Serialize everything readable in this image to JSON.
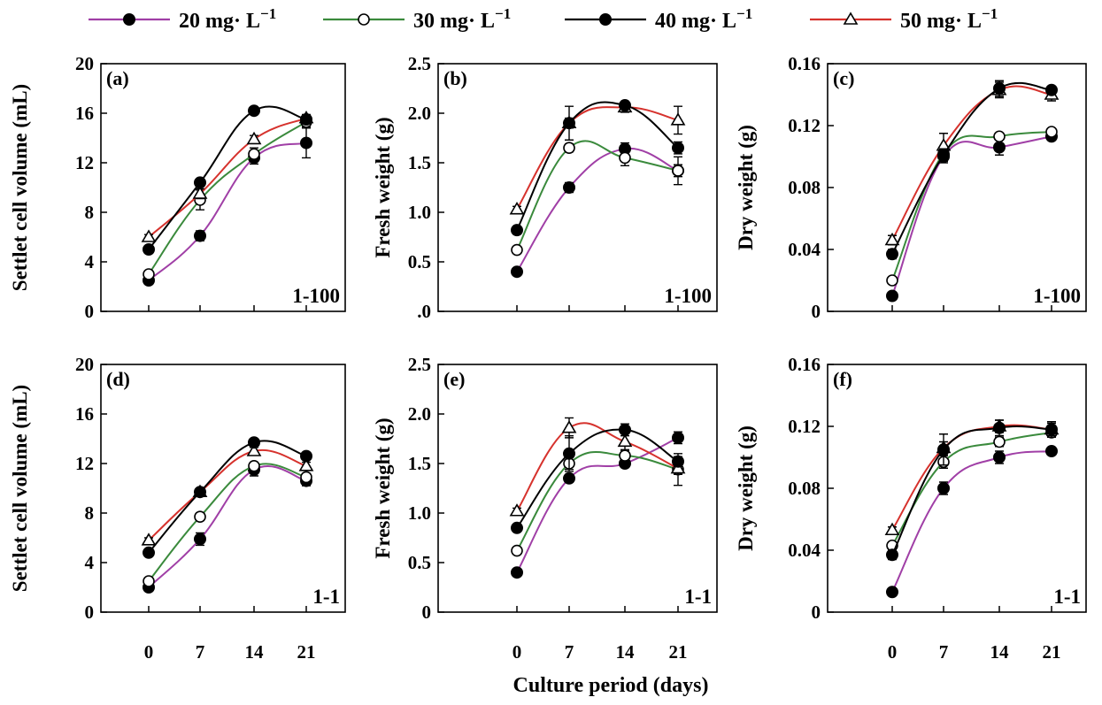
{
  "colors": {
    "s20": "#a03fa6",
    "s30": "#3a8a3c",
    "s40": "#000000",
    "s50": "#d6322d"
  },
  "legend": [
    {
      "label": "20 mg· L",
      "sup": "−1",
      "marker": "filled-circle",
      "color": "#a03fa6"
    },
    {
      "label": "30 mg· L",
      "sup": "−1",
      "marker": "open-circle",
      "color": "#3a8a3c"
    },
    {
      "label": "40 mg· L",
      "sup": "−1",
      "marker": "filled-circle",
      "color": "#000000"
    },
    {
      "label": "50 mg· L",
      "sup": "−1",
      "marker": "open-triangle",
      "color": "#d6322d"
    }
  ],
  "xlabel": "Culture period (days)",
  "chart_data": [
    {
      "id": "a",
      "type": "line",
      "panel_label": "(a)",
      "corner_label": "1-100",
      "ylabel": "Settlet cell volume (mL)",
      "x": [
        0,
        7,
        14,
        21
      ],
      "xticks": [
        "0",
        "7",
        "14",
        "21"
      ],
      "ylim": [
        0,
        20
      ],
      "yticks": [
        "0",
        "4",
        "8",
        "12",
        "16",
        "20"
      ],
      "series": [
        {
          "key": "s20",
          "values": [
            2.5,
            6.1,
            12.4,
            13.6
          ],
          "err": [
            0.2,
            0.4,
            0.5,
            1.2
          ]
        },
        {
          "key": "s30",
          "values": [
            3.0,
            9.0,
            12.7,
            15.3
          ],
          "err": [
            0.2,
            0.8,
            0.5,
            0.4
          ]
        },
        {
          "key": "s40",
          "values": [
            5.0,
            10.4,
            16.2,
            15.5
          ],
          "err": [
            0.3,
            0.3,
            0.2,
            0.3
          ]
        },
        {
          "key": "s50",
          "values": [
            6.0,
            9.5,
            13.9,
            15.6
          ],
          "err": [
            0.2,
            0.4,
            0.3,
            0.3
          ]
        }
      ]
    },
    {
      "id": "b",
      "type": "line",
      "panel_label": "(b)",
      "corner_label": "1-100",
      "ylabel": "Fresh weight (g)",
      "x": [
        0,
        7,
        14,
        21
      ],
      "xticks": [
        "0",
        "7",
        "14",
        "21"
      ],
      "ylim": [
        0,
        2.5
      ],
      "yticks": [
        ".0",
        "0.5",
        "1.0",
        "1.5",
        "2.0",
        "2.5"
      ],
      "series": [
        {
          "key": "s20",
          "values": [
            0.4,
            1.25,
            1.64,
            1.42
          ],
          "err": [
            0.02,
            0.05,
            0.06,
            0.06
          ]
        },
        {
          "key": "s30",
          "values": [
            0.62,
            1.65,
            1.55,
            1.42
          ],
          "err": [
            0.03,
            0.04,
            0.08,
            0.14
          ]
        },
        {
          "key": "s40",
          "values": [
            0.82,
            1.9,
            2.08,
            1.65
          ],
          "err": [
            0.04,
            0.05,
            0.04,
            0.06
          ]
        },
        {
          "key": "s50",
          "values": [
            1.03,
            1.9,
            2.06,
            1.93
          ],
          "err": [
            0.03,
            0.17,
            0.05,
            0.14
          ]
        }
      ]
    },
    {
      "id": "c",
      "type": "line",
      "panel_label": "(c)",
      "corner_label": "1-100",
      "ylabel": "Dry weight (g)",
      "x": [
        0,
        7,
        14,
        21
      ],
      "xticks": [
        "0",
        "7",
        "14",
        "21"
      ],
      "ylim": [
        0,
        0.16
      ],
      "yticks": [
        "0",
        "0.04",
        "0.08",
        "0.12",
        "0.16"
      ],
      "series": [
        {
          "key": "s20",
          "values": [
            0.01,
            0.1,
            0.106,
            0.113
          ],
          "err": [
            0.001,
            0.004,
            0.005,
            0.002
          ]
        },
        {
          "key": "s30",
          "values": [
            0.02,
            0.102,
            0.113,
            0.116
          ],
          "err": [
            0.002,
            0.004,
            0.002,
            0.002
          ]
        },
        {
          "key": "s40",
          "values": [
            0.037,
            0.101,
            0.144,
            0.143
          ],
          "err": [
            0.003,
            0.004,
            0.005,
            0.002
          ]
        },
        {
          "key": "s50",
          "values": [
            0.046,
            0.107,
            0.143,
            0.14
          ],
          "err": [
            0.003,
            0.008,
            0.005,
            0.004
          ]
        }
      ]
    },
    {
      "id": "d",
      "type": "line",
      "panel_label": "(d)",
      "corner_label": "1-1",
      "ylabel": "Settlet cell volume (mL)",
      "x": [
        0,
        7,
        14,
        21
      ],
      "xticks": [
        "0",
        "7",
        "14",
        "21"
      ],
      "ylim": [
        0,
        20
      ],
      "yticks": [
        "0",
        "4",
        "8",
        "12",
        "16",
        "20"
      ],
      "series": [
        {
          "key": "s20",
          "values": [
            2.0,
            5.9,
            11.5,
            10.6
          ],
          "err": [
            0.3,
            0.5,
            0.5,
            0.4
          ]
        },
        {
          "key": "s30",
          "values": [
            2.5,
            7.7,
            11.8,
            10.9
          ],
          "err": [
            0.2,
            0.3,
            0.3,
            0.3
          ]
        },
        {
          "key": "s40",
          "values": [
            4.8,
            9.7,
            13.7,
            12.6
          ],
          "err": [
            0.2,
            0.2,
            0.2,
            0.2
          ]
        },
        {
          "key": "s50",
          "values": [
            5.8,
            9.7,
            13.0,
            11.8
          ],
          "err": [
            0.2,
            0.2,
            0.3,
            0.3
          ]
        }
      ]
    },
    {
      "id": "e",
      "type": "line",
      "panel_label": "(e)",
      "corner_label": "1-1",
      "ylabel": "Fresh weight (g)",
      "x": [
        0,
        7,
        14,
        21
      ],
      "xticks": [
        "0",
        "7",
        "14",
        "21"
      ],
      "ylim": [
        0,
        2.5
      ],
      "yticks": [
        "0",
        "0.5",
        "1.0",
        "1.5",
        "2.0",
        "2.5"
      ],
      "series": [
        {
          "key": "s20",
          "values": [
            0.4,
            1.35,
            1.5,
            1.76
          ],
          "err": [
            0.02,
            0.04,
            0.04,
            0.06
          ]
        },
        {
          "key": "s30",
          "values": [
            0.62,
            1.5,
            1.58,
            1.44
          ],
          "err": [
            0.03,
            0.06,
            0.05,
            0.16
          ]
        },
        {
          "key": "s40",
          "values": [
            0.85,
            1.6,
            1.84,
            1.52
          ],
          "err": [
            0.03,
            0.18,
            0.06,
            0.05
          ]
        },
        {
          "key": "s50",
          "values": [
            1.02,
            1.86,
            1.72,
            1.45
          ],
          "err": [
            0.03,
            0.1,
            0.08,
            0.06
          ]
        }
      ]
    },
    {
      "id": "f",
      "type": "line",
      "panel_label": "(f)",
      "corner_label": "1-1",
      "ylabel": "Dry weight (g)",
      "x": [
        0,
        7,
        14,
        21
      ],
      "xticks": [
        "0",
        "7",
        "14",
        "21"
      ],
      "ylim": [
        0,
        0.16
      ],
      "yticks": [
        "0",
        "0.04",
        "0.08",
        "0.12",
        "0.16"
      ],
      "series": [
        {
          "key": "s20",
          "values": [
            0.013,
            0.08,
            0.1,
            0.104
          ],
          "err": [
            0.002,
            0.004,
            0.004,
            0.002
          ]
        },
        {
          "key": "s30",
          "values": [
            0.043,
            0.097,
            0.11,
            0.116
          ],
          "err": [
            0.002,
            0.004,
            0.003,
            0.003
          ]
        },
        {
          "key": "s40",
          "values": [
            0.037,
            0.105,
            0.119,
            0.118
          ],
          "err": [
            0.003,
            0.01,
            0.005,
            0.004
          ]
        },
        {
          "key": "s50",
          "values": [
            0.053,
            0.106,
            0.12,
            0.118
          ],
          "err": [
            0.002,
            0.004,
            0.004,
            0.005
          ]
        }
      ]
    }
  ]
}
